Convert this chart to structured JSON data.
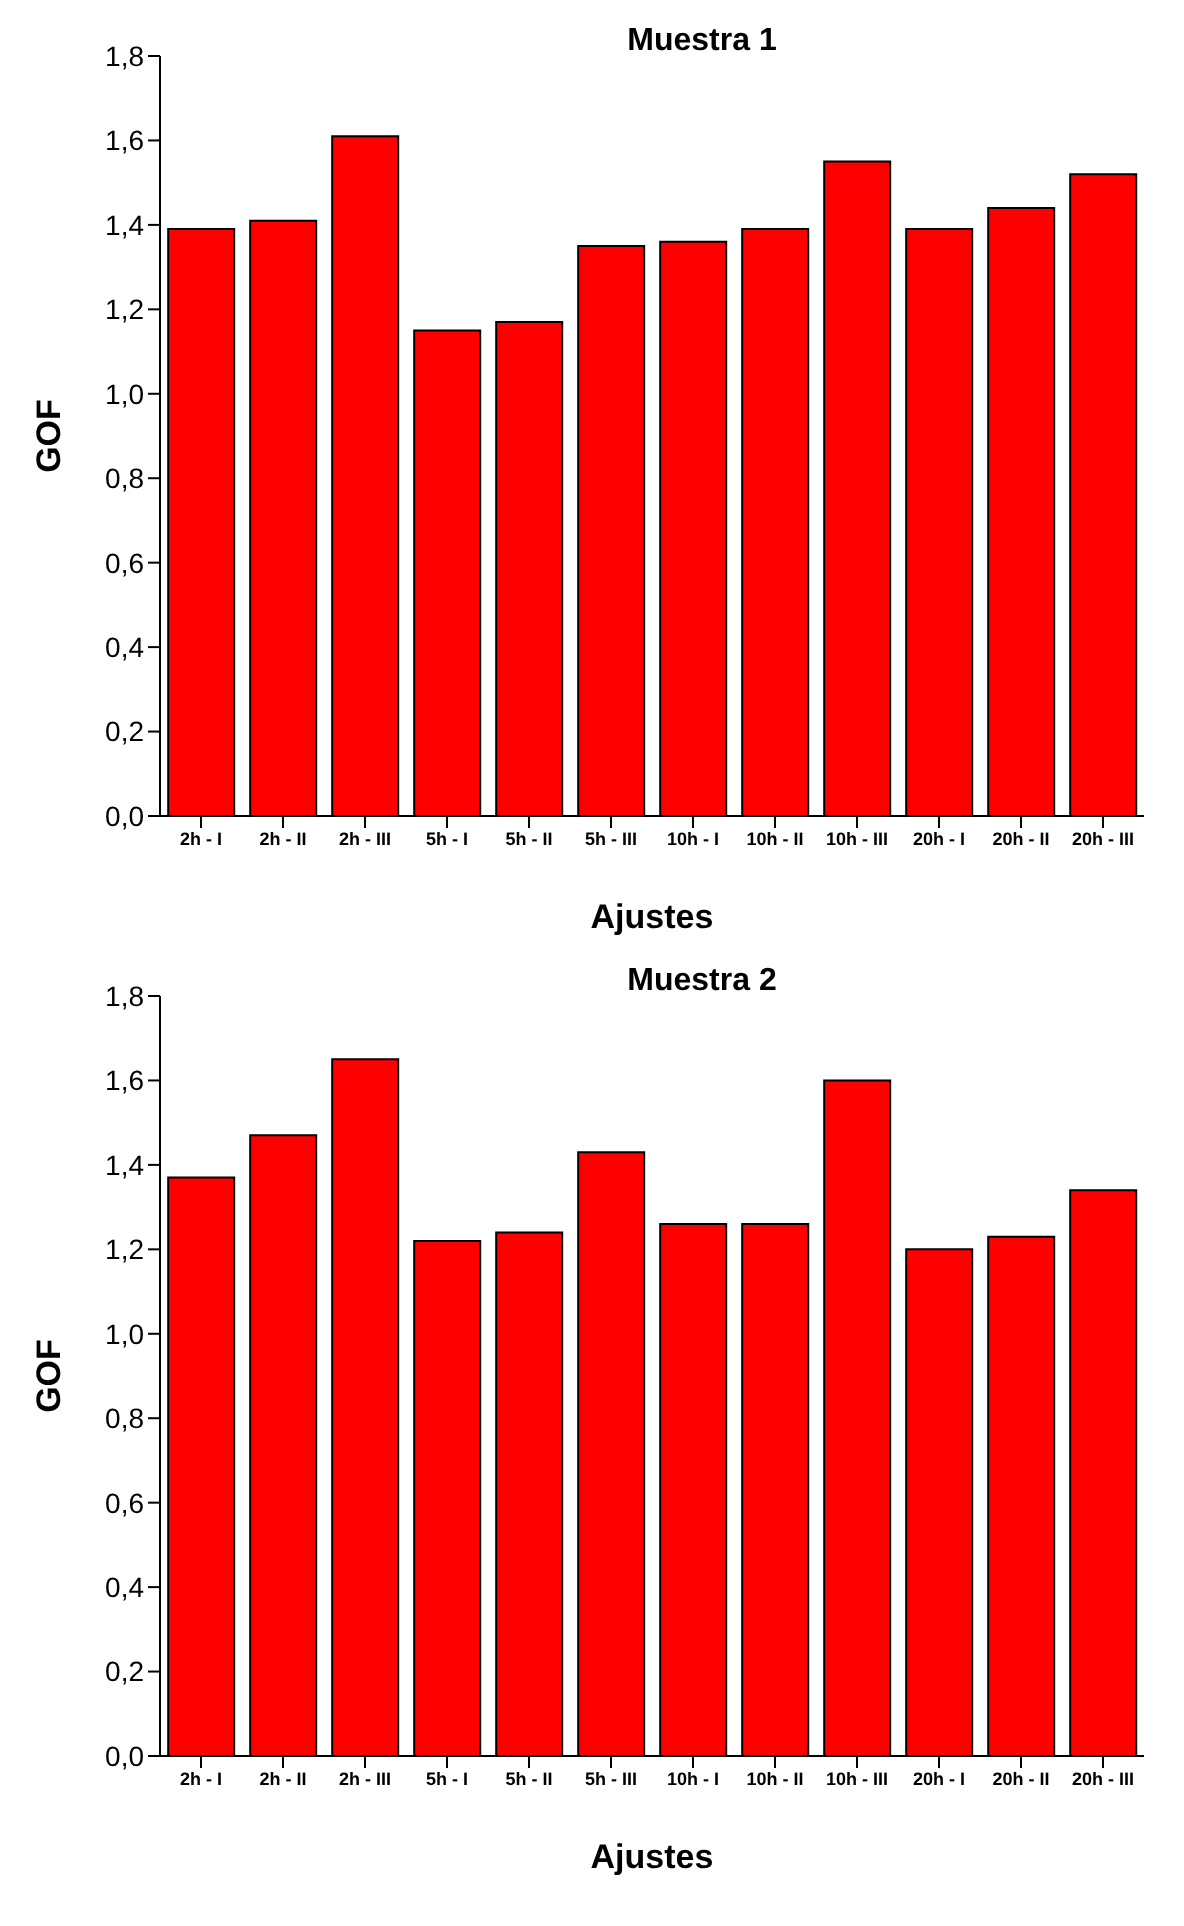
{
  "chart_data": [
    {
      "type": "bar",
      "title": "Muestra 1",
      "xlabel": "Ajustes",
      "ylabel": "GOF",
      "categories": [
        "2h - I",
        "2h - II",
        "2h - III",
        "5h - I",
        "5h - II",
        "5h - III",
        "10h - I",
        "10h - II",
        "10h - III",
        "20h - I",
        "20h - II",
        "20h - III"
      ],
      "values": [
        1.39,
        1.41,
        1.61,
        1.15,
        1.17,
        1.35,
        1.36,
        1.39,
        1.55,
        1.39,
        1.44,
        1.52
      ],
      "color": "#ff0000",
      "ylim": [
        0,
        1.8
      ],
      "yticks": [
        {
          "value": 0,
          "label": "0,0"
        },
        {
          "value": 0.2,
          "label": "0,2"
        },
        {
          "value": 0.4,
          "label": "0,4"
        },
        {
          "value": 0.6,
          "label": "0,6"
        },
        {
          "value": 0.8,
          "label": "0,8"
        },
        {
          "value": 1,
          "label": "1,0"
        },
        {
          "value": 1.2,
          "label": "1,2"
        },
        {
          "value": 1.4,
          "label": "1,4"
        },
        {
          "value": 1.6,
          "label": "1,6"
        },
        {
          "value": 1.8,
          "label": "1,8"
        }
      ],
      "grid": false,
      "legend": false
    },
    {
      "type": "bar",
      "title": "Muestra 2",
      "xlabel": "Ajustes",
      "ylabel": "GOF",
      "categories": [
        "2h - I",
        "2h - II",
        "2h - III",
        "5h - I",
        "5h - II",
        "5h - III",
        "10h - I",
        "10h - II",
        "10h - III",
        "20h - I",
        "20h - II",
        "20h - III"
      ],
      "values": [
        1.37,
        1.47,
        1.65,
        1.22,
        1.24,
        1.43,
        1.26,
        1.26,
        1.6,
        1.2,
        1.23,
        1.34
      ],
      "color": "#ff0000",
      "ylim": [
        0,
        1.8
      ],
      "yticks": [
        {
          "value": 0,
          "label": "0,0"
        },
        {
          "value": 0.2,
          "label": "0,2"
        },
        {
          "value": 0.4,
          "label": "0,4"
        },
        {
          "value": 0.6,
          "label": "0,6"
        },
        {
          "value": 0.8,
          "label": "0,8"
        },
        {
          "value": 1,
          "label": "1,0"
        },
        {
          "value": 1.2,
          "label": "1,2"
        },
        {
          "value": 1.4,
          "label": "1,4"
        },
        {
          "value": 1.6,
          "label": "1,6"
        },
        {
          "value": 1.8,
          "label": "1,8"
        }
      ],
      "grid": false,
      "legend": false
    }
  ]
}
